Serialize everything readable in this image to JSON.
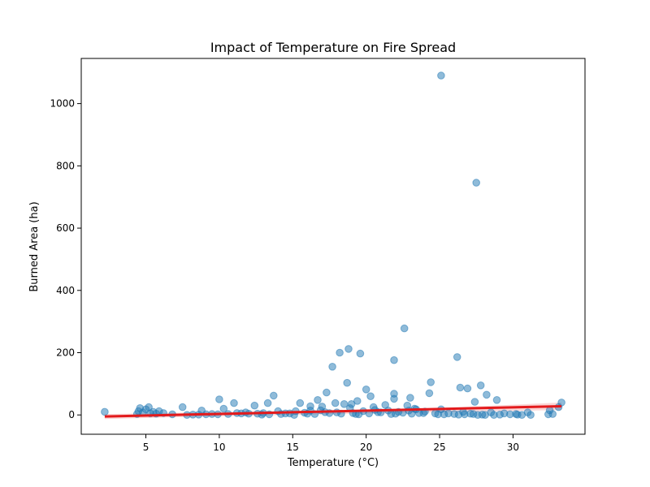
{
  "chart_data": {
    "type": "scatter",
    "title": "Impact of Temperature on Fire Spread",
    "xlabel": "Temperature (°C)",
    "ylabel": "Burned Area (ha)",
    "xlim": [
      0.6,
      34.9
    ],
    "ylim": [
      -62,
      1145
    ],
    "xticks": [
      5,
      10,
      15,
      20,
      25,
      30
    ],
    "yticks": [
      0,
      200,
      400,
      600,
      800,
      1000
    ],
    "grid": false,
    "colors": {
      "points": "#1f77b4",
      "trend_line": "#e31a1c",
      "confidence_band": "#f4a3a3",
      "axes": "#000000"
    },
    "trend_line": {
      "x": [
        2.2,
        33.3
      ],
      "y": [
        -5,
        28
      ]
    },
    "confidence_band": {
      "x": [
        2.2,
        10,
        18,
        25,
        33.3
      ],
      "lower": [
        -13,
        -4,
        3,
        9,
        16
      ],
      "upper": [
        3,
        9,
        13,
        22,
        40
      ]
    },
    "points": {
      "x": [
        25.1,
        27.5,
        22.6,
        18.8,
        18.2,
        19.6,
        17.7,
        21.9,
        26.2,
        24.4,
        18.7,
        17.3,
        26.4,
        27.8,
        20.0,
        26.9,
        13.7,
        28.2,
        15.5,
        16.7,
        28.9,
        21.9,
        10.0,
        20.3,
        23.0,
        19.4,
        11.0,
        13.3,
        24.3,
        33.3,
        21.9,
        5.2,
        4.6,
        16.2,
        17.9,
        10.3,
        12.4,
        22.8,
        25.1,
        7.5,
        20.5,
        16.2,
        8.8,
        15.2,
        2.2,
        5.9,
        23.3,
        18.5,
        19.0,
        21.3,
        17.0,
        27.4,
        28.5,
        29.4,
        30.2,
        31.0,
        32.5,
        32.7,
        33.1,
        6.8,
        8.2,
        9.5,
        11.5,
        12.0,
        13.0,
        14.2,
        14.8,
        16.0,
        17.5,
        18.0,
        19.8,
        20.8,
        21.5,
        22.2,
        23.6,
        24.0,
        25.6,
        26.0,
        26.7,
        27.1,
        27.9,
        28.7,
        29.8,
        30.3,
        31.2,
        4.5,
        5.0,
        5.5,
        5.3,
        4.8,
        4.4,
        5.7,
        7.8,
        8.6,
        9.1,
        10.6,
        11.2,
        12.6,
        13.4,
        14.5,
        15.8,
        16.5,
        17.2,
        18.3,
        19.1,
        19.5,
        20.2,
        21.0,
        21.7,
        22.5,
        23.1,
        23.9,
        24.7,
        25.3,
        26.3,
        27.3,
        28.1,
        29.1,
        30.6,
        32.4,
        6.2,
        9.9,
        12.9,
        15.1,
        19.3,
        22.0,
        24.9,
        27.6,
        20.6,
        18.9,
        23.4,
        16.9,
        14.0,
        11.8,
        22.9,
        26.6
      ],
      "y": [
        1090,
        746,
        278,
        212,
        200,
        197,
        155,
        176,
        186,
        105,
        103,
        72,
        88,
        95,
        82,
        85,
        62,
        65,
        38,
        48,
        48,
        52,
        50,
        60,
        55,
        45,
        38,
        38,
        70,
        40,
        68,
        25,
        22,
        28,
        38,
        20,
        30,
        30,
        18,
        25,
        25,
        14,
        14,
        12,
        10,
        12,
        20,
        35,
        35,
        32,
        27,
        42,
        8,
        5,
        3,
        8,
        15,
        3,
        25,
        2,
        1,
        3,
        5,
        4,
        6,
        3,
        5,
        4,
        6,
        8,
        12,
        9,
        14,
        10,
        6,
        11,
        5,
        3,
        2,
        4,
        1,
        0,
        2,
        1,
        0,
        12,
        18,
        10,
        5,
        8,
        3,
        4,
        0,
        1,
        2,
        3,
        6,
        4,
        2,
        5,
        7,
        3,
        9,
        4,
        6,
        2,
        5,
        8,
        3,
        7,
        4,
        6,
        5,
        2,
        1,
        3,
        0,
        1,
        0,
        2,
        6,
        2,
        1,
        0,
        3,
        4,
        2,
        0,
        16,
        22,
        18,
        15,
        12,
        8,
        14,
        10
      ]
    }
  }
}
